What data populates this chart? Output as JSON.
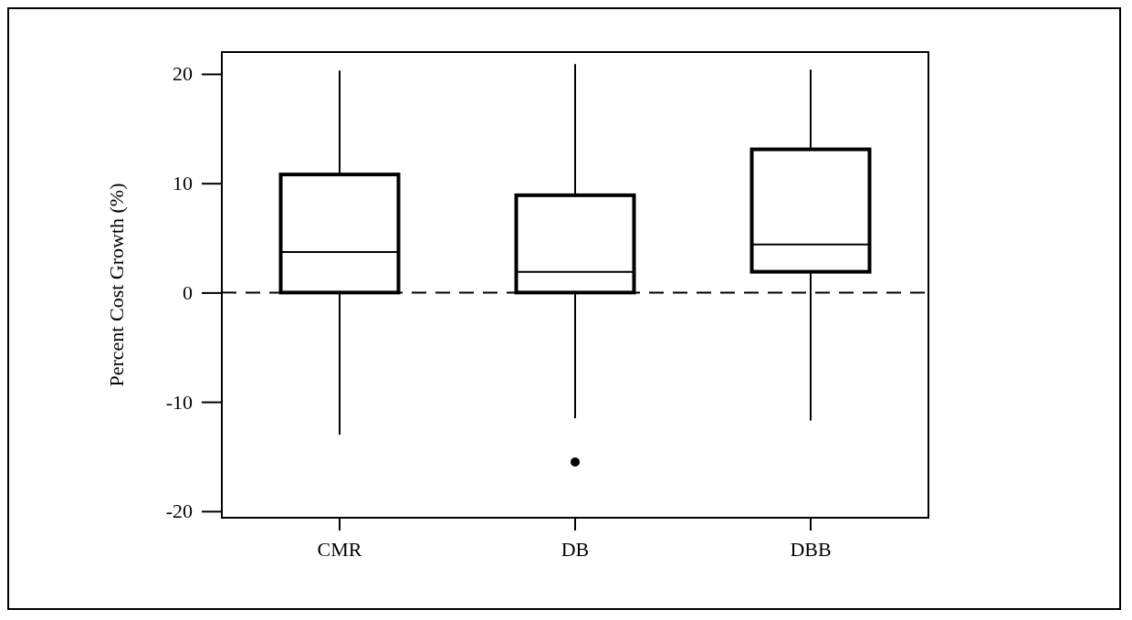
{
  "chart_data": {
    "type": "box",
    "ylabel": "Percent Cost Growth (%)",
    "categories": [
      "CMR",
      "DB",
      "DBB"
    ],
    "boxes": [
      {
        "low": -13,
        "q1": 0,
        "median": 3.7,
        "q3": 10.8,
        "high": 20.3
      },
      {
        "low": -11.5,
        "q1": 0,
        "median": 1.9,
        "q3": 8.9,
        "high": 20.9,
        "outliers": [
          -15.5
        ]
      },
      {
        "low": -11.7,
        "q1": 1.9,
        "median": 4.4,
        "q3": 13.1,
        "high": 20.4
      }
    ],
    "color": "#000000",
    "ylim": [
      -20.6,
      22
    ],
    "yticks": [
      -20,
      -10,
      0,
      10,
      20
    ],
    "ref_lines": [
      {
        "axis": "y",
        "value": 0,
        "line_style": "dashed"
      }
    ]
  }
}
